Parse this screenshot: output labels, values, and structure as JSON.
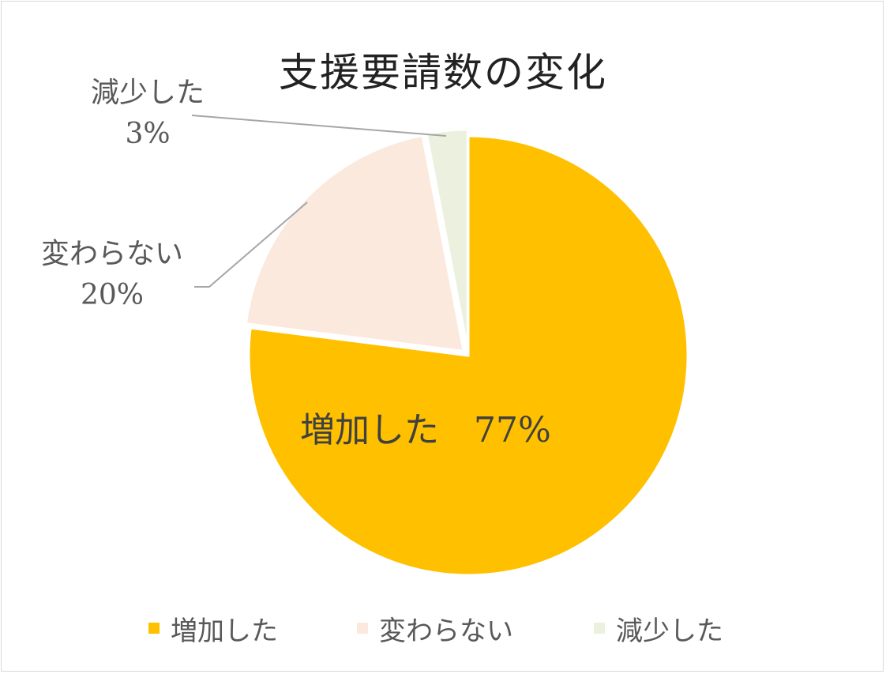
{
  "chart_data": {
    "type": "pie",
    "title": "支援要請数の変化",
    "categories": [
      "増加した",
      "変わらない",
      "減少した"
    ],
    "values": [
      77,
      20,
      3
    ],
    "unit": "%",
    "data_labels": [
      "77%",
      "20%",
      "3%"
    ],
    "colors": [
      "#FFC000",
      "#FCE9DD",
      "#EBF1DE"
    ],
    "legend_position": "bottom",
    "start_angle": "12 o'clock",
    "direction": "clockwise"
  },
  "labels": {
    "increase": {
      "name": "増加した",
      "value": "77%"
    },
    "same": {
      "name": "変わらない",
      "value": "20%"
    },
    "decrease": {
      "name": "減少した",
      "value": "3%"
    }
  },
  "legend": [
    {
      "label": "増加した",
      "color": "#FFC000"
    },
    {
      "label": "変わらない",
      "color": "#FCE9DD"
    },
    {
      "label": "減少した",
      "color": "#EBF1DE"
    }
  ]
}
